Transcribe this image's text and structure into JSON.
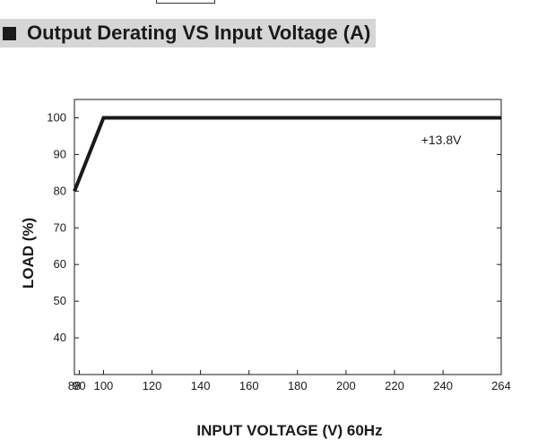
{
  "header": {
    "title": "Output Derating VS Input Voltage (A)"
  },
  "chart_data": {
    "type": "line",
    "title": "Output Derating VS Input Voltage (A)",
    "xlabel": "INPUT VOLTAGE (V) 60Hz",
    "ylabel": "LOAD (%)",
    "x_ticks": [
      "88",
      "90",
      "100",
      "120",
      "140",
      "160",
      "180",
      "200",
      "220",
      "240",
      "264"
    ],
    "x_tick_values": [
      88,
      90,
      100,
      120,
      140,
      160,
      180,
      200,
      220,
      240,
      264
    ],
    "y_ticks": [
      "40",
      "50",
      "60",
      "70",
      "80",
      "90",
      "100"
    ],
    "y_tick_values": [
      40,
      50,
      60,
      70,
      80,
      90,
      100
    ],
    "xlim": [
      88,
      264
    ],
    "ylim": [
      30,
      105
    ],
    "grid": false,
    "series": [
      {
        "name": "+13.8V",
        "x": [
          88,
          100,
          264
        ],
        "y": [
          80,
          100,
          100
        ]
      }
    ],
    "annotations": [
      {
        "text": "+13.8V",
        "x": 240,
        "y": 94
      }
    ],
    "line_color": "#1a1a1a"
  }
}
